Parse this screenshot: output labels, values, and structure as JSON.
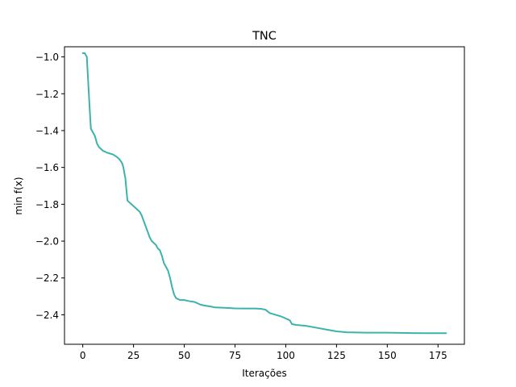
{
  "chart_data": {
    "type": "line",
    "title": "TNC",
    "xlabel": "Iterações",
    "ylabel": "min f(x)",
    "xlim": [
      -9,
      188
    ],
    "ylim": [
      -2.56,
      -0.945
    ],
    "xticks": [
      0,
      25,
      50,
      75,
      100,
      125,
      150,
      175
    ],
    "xtick_labels": [
      "0",
      "25",
      "50",
      "75",
      "100",
      "125",
      "150",
      "175"
    ],
    "yticks": [
      -1.0,
      -1.2,
      -1.4,
      -1.6,
      -1.8,
      -2.0,
      -2.2,
      -2.4
    ],
    "ytick_labels": [
      "−1.0",
      "−1.2",
      "−1.4",
      "−1.6",
      "−1.8",
      "−2.0",
      "−2.2",
      "−2.4"
    ],
    "grid": false,
    "line_color": "#3bb3ac",
    "series": [
      {
        "x": [
          0,
          1,
          2,
          2.5,
          3,
          3.5,
          4,
          5,
          6,
          7,
          8,
          10,
          12,
          15,
          17,
          18,
          19,
          19.5,
          20,
          20.5,
          21,
          22,
          23,
          24,
          25,
          26,
          27,
          28,
          29,
          30,
          31,
          32,
          33,
          34,
          35,
          36,
          37,
          38,
          39,
          40,
          41,
          42,
          43,
          44,
          45,
          46,
          48,
          50,
          52,
          55,
          58,
          60,
          63,
          65,
          70,
          75,
          80,
          85,
          88,
          90,
          92,
          95,
          98,
          100,
          102,
          103,
          105,
          110,
          115,
          120,
          125,
          130,
          140,
          150,
          160,
          170,
          179
        ],
        "y": [
          -0.98,
          -0.98,
          -1.0,
          -1.1,
          -1.2,
          -1.3,
          -1.39,
          -1.41,
          -1.43,
          -1.47,
          -1.49,
          -1.51,
          -1.52,
          -1.53,
          -1.545,
          -1.555,
          -1.57,
          -1.58,
          -1.6,
          -1.63,
          -1.66,
          -1.78,
          -1.79,
          -1.8,
          -1.81,
          -1.82,
          -1.83,
          -1.84,
          -1.86,
          -1.89,
          -1.92,
          -1.95,
          -1.98,
          -2.0,
          -2.01,
          -2.02,
          -2.04,
          -2.05,
          -2.08,
          -2.12,
          -2.14,
          -2.16,
          -2.2,
          -2.25,
          -2.29,
          -2.31,
          -2.32,
          -2.32,
          -2.325,
          -2.33,
          -2.345,
          -2.35,
          -2.355,
          -2.36,
          -2.362,
          -2.365,
          -2.366,
          -2.366,
          -2.368,
          -2.372,
          -2.39,
          -2.4,
          -2.41,
          -2.42,
          -2.43,
          -2.45,
          -2.455,
          -2.46,
          -2.47,
          -2.48,
          -2.49,
          -2.495,
          -2.497,
          -2.497,
          -2.499,
          -2.5,
          -2.5
        ]
      }
    ]
  }
}
